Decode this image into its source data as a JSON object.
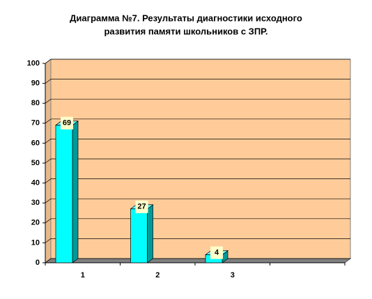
{
  "chart_data": {
    "type": "bar3d",
    "title": [
      "Диаграмма №7. Результаты диагностики исходного",
      "развития памяти школьников с ЗПР."
    ],
    "categories": [
      1,
      2,
      3,
      null
    ],
    "values": [
      69,
      27,
      4,
      null
    ],
    "color": "#00ffff",
    "ylim": [
      0,
      100
    ],
    "yticks": [
      0,
      10,
      20,
      30,
      40,
      50,
      60,
      70,
      80,
      90,
      100
    ],
    "grid": true
  }
}
